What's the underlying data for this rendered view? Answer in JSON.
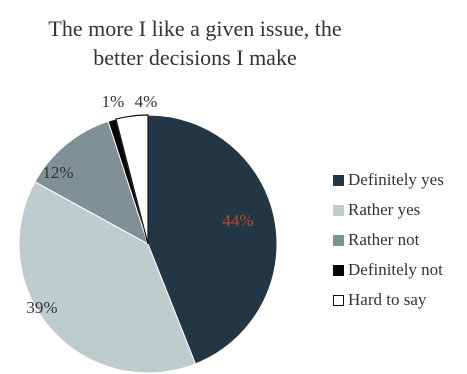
{
  "chart_data": {
    "type": "pie",
    "title_lines": [
      "The more I like a given issue, the",
      "better decisions I make"
    ],
    "slices": [
      {
        "label": "Definitely yes",
        "value": 44,
        "value_label": "44%",
        "color": "#223645"
      },
      {
        "label": "Rather yes",
        "value": 39,
        "value_label": "39%",
        "color": "#bfcccd"
      },
      {
        "label": "Rather not",
        "value": 12,
        "value_label": "12%",
        "color": "#7f9195"
      },
      {
        "label": "Definitely not",
        "value": 1,
        "value_label": "1%",
        "color": "#050505"
      },
      {
        "label": "Hard to say",
        "value": 4,
        "value_label": "4%",
        "color": "#ffffff"
      }
    ],
    "legend_position": "right",
    "start_angle": "12 o'clock",
    "direction": "clockwise"
  }
}
